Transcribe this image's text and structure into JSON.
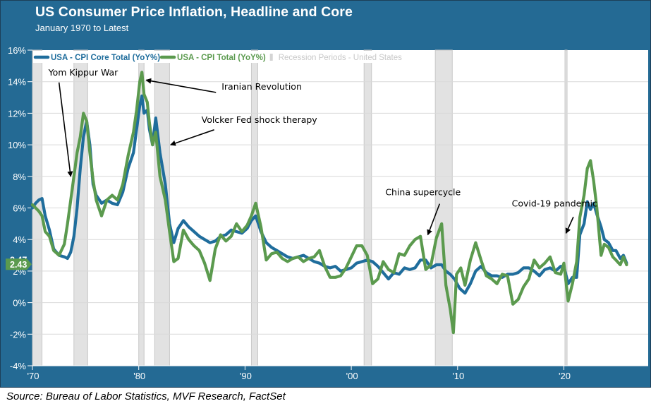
{
  "header": {
    "title": "US Consumer Price Inflation, Headline and Core",
    "subtitle": "January 1970 to Latest"
  },
  "footer": {
    "source": "Source: Bureau of Labor Statistics, MVF Research, FactSet"
  },
  "colors": {
    "frame": "#246a94",
    "core": "#1f6d9c",
    "headline": "#5b9a4e",
    "recession": "#e2e2e2",
    "grid": "#d9d9d9"
  },
  "chart_data": {
    "type": "line",
    "title": "US Consumer Price Inflation, Headline and Core",
    "subtitle": "January 1970 to Latest",
    "xlabel": "",
    "ylabel": "",
    "xlim": [
      1970,
      2026.5
    ],
    "ylim": [
      -4,
      16
    ],
    "grid": true,
    "legend_position": "top-left",
    "x_ticks": [
      {
        "value": 1970,
        "label": "'70"
      },
      {
        "value": 1980,
        "label": "'80"
      },
      {
        "value": 1990,
        "label": "'90"
      },
      {
        "value": 2000,
        "label": "'00"
      },
      {
        "value": 2010,
        "label": "'10"
      },
      {
        "value": 2020,
        "label": "'20"
      }
    ],
    "y_ticks": [
      {
        "value": 16,
        "label": "16%"
      },
      {
        "value": 14,
        "label": "14%"
      },
      {
        "value": 12,
        "label": "12%"
      },
      {
        "value": 10,
        "label": "10%"
      },
      {
        "value": 8,
        "label": "8%"
      },
      {
        "value": 6,
        "label": "6%"
      },
      {
        "value": 4,
        "label": "4%"
      },
      {
        "value": 2,
        "label": "2%"
      },
      {
        "value": 0,
        "label": "0%"
      },
      {
        "value": -2,
        "label": "-2%"
      },
      {
        "value": -4,
        "label": "-4%"
      }
    ],
    "legend": [
      {
        "name": "USA - CPI Core Total (YoY%)",
        "key": "core"
      },
      {
        "name": "USA - CPI Total (YoY%)",
        "key": "headline"
      },
      {
        "name": "Recession Periods - United States",
        "key": "recession"
      }
    ],
    "recessions": [
      [
        1970.0,
        1970.9
      ],
      [
        1973.9,
        1975.2
      ],
      [
        1980.0,
        1980.5
      ],
      [
        1981.5,
        1982.9
      ],
      [
        1990.6,
        1991.2
      ],
      [
        2001.2,
        2001.9
      ],
      [
        2007.9,
        2009.5
      ],
      [
        2020.1,
        2020.3
      ]
    ],
    "series": [
      {
        "name": "USA - CPI Core Total (YoY%)",
        "key": "core",
        "last_value": "2.47",
        "points": [
          [
            1970.0,
            6.0
          ],
          [
            1970.3,
            6.3
          ],
          [
            1970.6,
            6.5
          ],
          [
            1970.9,
            6.6
          ],
          [
            1971.2,
            5.5
          ],
          [
            1971.6,
            4.6
          ],
          [
            1972.0,
            3.4
          ],
          [
            1972.5,
            3.0
          ],
          [
            1973.0,
            2.9
          ],
          [
            1973.3,
            2.8
          ],
          [
            1973.6,
            3.2
          ],
          [
            1973.9,
            4.2
          ],
          [
            1974.2,
            6.0
          ],
          [
            1974.5,
            8.5
          ],
          [
            1974.8,
            10.5
          ],
          [
            1975.1,
            11.5
          ],
          [
            1975.4,
            10.0
          ],
          [
            1975.7,
            7.5
          ],
          [
            1976.0,
            6.8
          ],
          [
            1976.5,
            6.3
          ],
          [
            1977.0,
            6.5
          ],
          [
            1977.5,
            6.3
          ],
          [
            1978.0,
            6.2
          ],
          [
            1978.5,
            7.0
          ],
          [
            1979.0,
            8.5
          ],
          [
            1979.5,
            9.5
          ],
          [
            1979.8,
            11.0
          ],
          [
            1980.1,
            12.5
          ],
          [
            1980.3,
            13.1
          ],
          [
            1980.5,
            12.0
          ],
          [
            1980.8,
            12.2
          ],
          [
            1981.0,
            11.0
          ],
          [
            1981.3,
            10.0
          ],
          [
            1981.6,
            11.7
          ],
          [
            1982.0,
            9.5
          ],
          [
            1982.5,
            7.5
          ],
          [
            1982.9,
            5.0
          ],
          [
            1983.3,
            3.8
          ],
          [
            1983.7,
            4.7
          ],
          [
            1984.2,
            5.2
          ],
          [
            1984.7,
            4.8
          ],
          [
            1985.2,
            4.5
          ],
          [
            1985.7,
            4.2
          ],
          [
            1986.2,
            4.0
          ],
          [
            1986.7,
            3.8
          ],
          [
            1987.2,
            3.9
          ],
          [
            1987.7,
            4.2
          ],
          [
            1988.2,
            4.3
          ],
          [
            1988.7,
            4.6
          ],
          [
            1989.2,
            4.5
          ],
          [
            1989.7,
            4.4
          ],
          [
            1990.2,
            4.7
          ],
          [
            1990.6,
            5.2
          ],
          [
            1991.0,
            5.5
          ],
          [
            1991.5,
            4.5
          ],
          [
            1992.0,
            3.8
          ],
          [
            1992.5,
            3.5
          ],
          [
            1993.0,
            3.3
          ],
          [
            1993.5,
            3.1
          ],
          [
            1994.0,
            2.9
          ],
          [
            1994.5,
            2.8
          ],
          [
            1995.0,
            2.9
          ],
          [
            1995.5,
            3.0
          ],
          [
            1996.0,
            2.8
          ],
          [
            1996.5,
            2.6
          ],
          [
            1997.0,
            2.5
          ],
          [
            1997.5,
            2.3
          ],
          [
            1998.0,
            2.2
          ],
          [
            1998.5,
            2.3
          ],
          [
            1999.0,
            2.0
          ],
          [
            1999.5,
            2.1
          ],
          [
            2000.0,
            2.2
          ],
          [
            2000.5,
            2.5
          ],
          [
            2001.0,
            2.6
          ],
          [
            2001.5,
            2.7
          ],
          [
            2002.0,
            2.6
          ],
          [
            2002.5,
            2.3
          ],
          [
            2003.0,
            1.9
          ],
          [
            2003.5,
            1.5
          ],
          [
            2004.0,
            1.9
          ],
          [
            2004.5,
            1.8
          ],
          [
            2005.0,
            2.2
          ],
          [
            2005.5,
            2.1
          ],
          [
            2006.0,
            2.2
          ],
          [
            2006.5,
            2.7
          ],
          [
            2007.0,
            2.7
          ],
          [
            2007.5,
            2.2
          ],
          [
            2008.0,
            2.4
          ],
          [
            2008.5,
            2.4
          ],
          [
            2008.9,
            2.0
          ],
          [
            2009.3,
            1.8
          ],
          [
            2009.7,
            1.5
          ],
          [
            2010.2,
            0.9
          ],
          [
            2010.7,
            0.6
          ],
          [
            2011.2,
            1.2
          ],
          [
            2011.7,
            2.0
          ],
          [
            2012.2,
            2.3
          ],
          [
            2012.7,
            1.9
          ],
          [
            2013.2,
            1.7
          ],
          [
            2013.7,
            1.7
          ],
          [
            2014.2,
            1.6
          ],
          [
            2014.7,
            1.8
          ],
          [
            2015.2,
            1.8
          ],
          [
            2015.7,
            1.9
          ],
          [
            2016.2,
            2.2
          ],
          [
            2016.7,
            2.2
          ],
          [
            2017.2,
            2.0
          ],
          [
            2017.7,
            1.7
          ],
          [
            2018.2,
            2.1
          ],
          [
            2018.7,
            2.2
          ],
          [
            2019.2,
            2.0
          ],
          [
            2019.7,
            2.3
          ],
          [
            2020.0,
            2.3
          ],
          [
            2020.4,
            1.2
          ],
          [
            2020.8,
            1.6
          ],
          [
            2021.2,
            1.6
          ],
          [
            2021.5,
            4.3
          ],
          [
            2021.9,
            5.0
          ],
          [
            2022.2,
            6.4
          ],
          [
            2022.5,
            5.9
          ],
          [
            2022.8,
            6.3
          ],
          [
            2023.1,
            5.6
          ],
          [
            2023.5,
            4.8
          ],
          [
            2023.8,
            4.0
          ],
          [
            2024.2,
            3.8
          ],
          [
            2024.6,
            3.3
          ],
          [
            2024.9,
            3.3
          ],
          [
            2025.3,
            2.8
          ],
          [
            2025.6,
            3.0
          ],
          [
            2025.9,
            2.5
          ]
        ]
      },
      {
        "name": "USA - CPI Total (YoY%)",
        "key": "headline",
        "last_value": "2.43",
        "points": [
          [
            1970.0,
            6.2
          ],
          [
            1970.3,
            6.0
          ],
          [
            1970.6,
            5.8
          ],
          [
            1970.9,
            5.5
          ],
          [
            1971.2,
            4.5
          ],
          [
            1971.6,
            4.2
          ],
          [
            1972.0,
            3.3
          ],
          [
            1972.5,
            3.0
          ],
          [
            1973.0,
            3.7
          ],
          [
            1973.3,
            5.0
          ],
          [
            1973.6,
            6.5
          ],
          [
            1973.9,
            8.0
          ],
          [
            1974.2,
            9.5
          ],
          [
            1974.5,
            10.5
          ],
          [
            1974.8,
            12.0
          ],
          [
            1975.1,
            11.5
          ],
          [
            1975.4,
            9.5
          ],
          [
            1975.7,
            7.8
          ],
          [
            1976.0,
            6.5
          ],
          [
            1976.5,
            5.5
          ],
          [
            1977.0,
            6.5
          ],
          [
            1977.5,
            6.8
          ],
          [
            1978.0,
            6.5
          ],
          [
            1978.5,
            7.5
          ],
          [
            1979.0,
            9.3
          ],
          [
            1979.5,
            10.8
          ],
          [
            1979.8,
            12.2
          ],
          [
            1980.1,
            14.0
          ],
          [
            1980.3,
            14.6
          ],
          [
            1980.5,
            13.2
          ],
          [
            1980.8,
            12.7
          ],
          [
            1981.0,
            11.4
          ],
          [
            1981.3,
            10.0
          ],
          [
            1981.6,
            10.8
          ],
          [
            1982.0,
            8.0
          ],
          [
            1982.5,
            6.5
          ],
          [
            1982.9,
            4.5
          ],
          [
            1983.3,
            2.6
          ],
          [
            1983.7,
            2.8
          ],
          [
            1984.2,
            4.6
          ],
          [
            1984.7,
            4.0
          ],
          [
            1985.2,
            3.6
          ],
          [
            1985.7,
            3.3
          ],
          [
            1986.2,
            2.5
          ],
          [
            1986.7,
            1.4
          ],
          [
            1987.2,
            3.4
          ],
          [
            1987.7,
            4.3
          ],
          [
            1988.2,
            3.9
          ],
          [
            1988.7,
            4.2
          ],
          [
            1989.2,
            5.0
          ],
          [
            1989.7,
            4.5
          ],
          [
            1990.2,
            4.9
          ],
          [
            1990.6,
            5.5
          ],
          [
            1991.0,
            6.3
          ],
          [
            1991.5,
            4.8
          ],
          [
            1992.0,
            2.7
          ],
          [
            1992.5,
            3.1
          ],
          [
            1993.0,
            3.2
          ],
          [
            1993.5,
            2.8
          ],
          [
            1994.0,
            2.6
          ],
          [
            1994.5,
            2.8
          ],
          [
            1995.0,
            2.9
          ],
          [
            1995.5,
            2.6
          ],
          [
            1996.0,
            2.8
          ],
          [
            1996.5,
            2.9
          ],
          [
            1997.0,
            3.3
          ],
          [
            1997.5,
            2.3
          ],
          [
            1998.0,
            1.6
          ],
          [
            1998.5,
            1.6
          ],
          [
            1999.0,
            1.7
          ],
          [
            1999.5,
            2.2
          ],
          [
            2000.0,
            2.9
          ],
          [
            2000.5,
            3.6
          ],
          [
            2001.0,
            3.6
          ],
          [
            2001.5,
            3.0
          ],
          [
            2002.0,
            1.2
          ],
          [
            2002.5,
            1.5
          ],
          [
            2003.0,
            2.6
          ],
          [
            2003.5,
            2.1
          ],
          [
            2004.0,
            1.9
          ],
          [
            2004.5,
            3.1
          ],
          [
            2005.0,
            3.0
          ],
          [
            2005.5,
            3.6
          ],
          [
            2006.0,
            4.0
          ],
          [
            2006.5,
            4.2
          ],
          [
            2007.0,
            2.1
          ],
          [
            2007.5,
            2.4
          ],
          [
            2008.0,
            4.1
          ],
          [
            2008.5,
            5.0
          ],
          [
            2008.9,
            1.1
          ],
          [
            2009.3,
            -0.4
          ],
          [
            2009.6,
            -1.9
          ],
          [
            2009.9,
            1.8
          ],
          [
            2010.3,
            2.2
          ],
          [
            2010.7,
            1.1
          ],
          [
            2011.2,
            2.7
          ],
          [
            2011.7,
            3.8
          ],
          [
            2012.2,
            2.7
          ],
          [
            2012.7,
            1.7
          ],
          [
            2013.2,
            1.5
          ],
          [
            2013.7,
            1.2
          ],
          [
            2014.2,
            1.8
          ],
          [
            2014.7,
            1.7
          ],
          [
            2015.2,
            -0.1
          ],
          [
            2015.7,
            0.2
          ],
          [
            2016.2,
            1.0
          ],
          [
            2016.7,
            1.5
          ],
          [
            2017.2,
            2.7
          ],
          [
            2017.7,
            2.2
          ],
          [
            2018.2,
            2.5
          ],
          [
            2018.7,
            2.9
          ],
          [
            2019.2,
            1.9
          ],
          [
            2019.7,
            1.8
          ],
          [
            2020.0,
            2.5
          ],
          [
            2020.4,
            0.1
          ],
          [
            2020.8,
            1.2
          ],
          [
            2021.2,
            2.6
          ],
          [
            2021.5,
            5.4
          ],
          [
            2021.9,
            6.8
          ],
          [
            2022.2,
            8.5
          ],
          [
            2022.5,
            9.0
          ],
          [
            2022.8,
            7.7
          ],
          [
            2023.1,
            6.0
          ],
          [
            2023.5,
            3.0
          ],
          [
            2023.8,
            3.7
          ],
          [
            2024.2,
            3.5
          ],
          [
            2024.6,
            2.9
          ],
          [
            2024.9,
            2.7
          ],
          [
            2025.3,
            2.4
          ],
          [
            2025.6,
            2.9
          ],
          [
            2025.9,
            2.4
          ]
        ]
      }
    ],
    "annotations": [
      {
        "text": "Yom Kippur War",
        "target": [
          1973.6,
          8.0
        ],
        "text_pos": [
          1971.5,
          14.4
        ]
      },
      {
        "text": "Iranian Revolution",
        "target": [
          1980.7,
          14.1
        ],
        "text_pos": [
          1987.8,
          13.5
        ]
      },
      {
        "text": "Volcker Fed shock therapy",
        "target": [
          1983.0,
          10.0
        ],
        "text_pos": [
          1985.9,
          11.4
        ]
      },
      {
        "text": "China supercycle",
        "target": [
          2007.2,
          4.3
        ],
        "text_pos": [
          2003.2,
          6.8
        ]
      },
      {
        "text": "Covid-19 pandemic",
        "target": [
          2020.2,
          4.4
        ],
        "text_pos": [
          2015.1,
          6.1
        ]
      }
    ]
  }
}
